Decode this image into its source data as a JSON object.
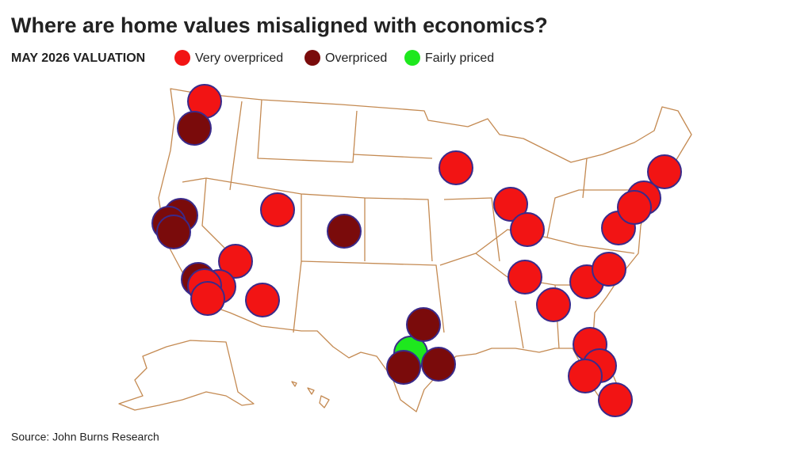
{
  "header": {
    "title": "Where are home values misaligned with economics?",
    "subtitle": "MAY 2026 VALUATION"
  },
  "legend": [
    {
      "name": "Very overpriced",
      "color": "#f21414"
    },
    {
      "name": "Overpriced",
      "color": "#7a0b0b"
    },
    {
      "name": "Fairly priced",
      "color": "#1ee81e"
    }
  ],
  "source": "Source: John Burns Research"
}
